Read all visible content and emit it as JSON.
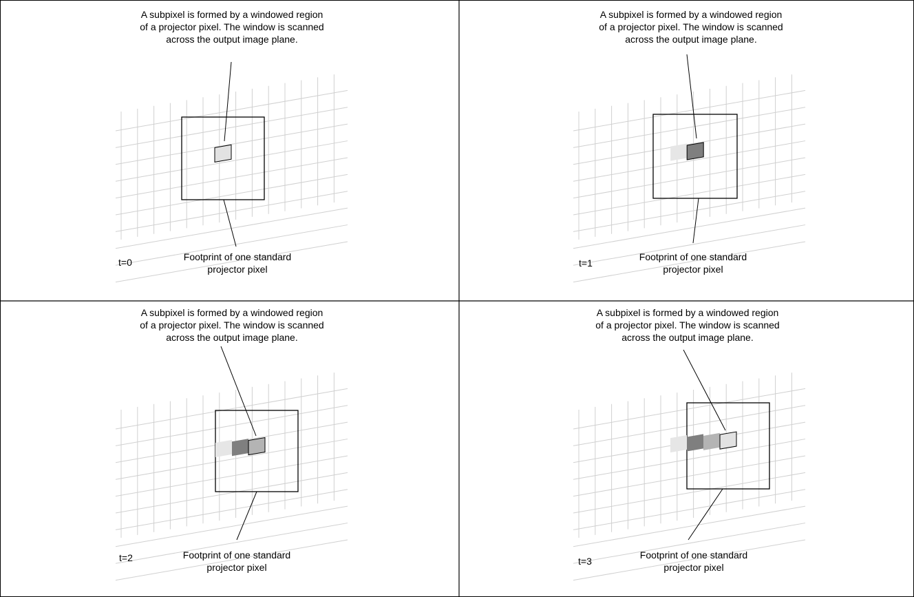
{
  "panels": [
    {
      "time_label": "t=0",
      "top_caption": [
        "A subpixel is formed by a windowed region",
        "of a projector pixel. The window is scanned",
        "across the output image plane."
      ],
      "bottom_caption": [
        "Footprint of one standard",
        "projector pixel"
      ],
      "trail_levels": [
        "light"
      ]
    },
    {
      "time_label": "t=1",
      "top_caption": [
        "A subpixel is formed by a windowed region",
        "of a projector pixel. The window is scanned",
        "across the output image plane."
      ],
      "bottom_caption": [
        "Footprint of one standard",
        "projector pixel"
      ],
      "trail_levels": [
        "faint",
        "dark"
      ]
    },
    {
      "time_label": "t=2",
      "top_caption": [
        "A subpixel is formed by a windowed region",
        "of a projector pixel. The window is scanned",
        "across the output image plane."
      ],
      "bottom_caption": [
        "Footprint of one standard",
        "projector pixel"
      ],
      "trail_levels": [
        "faint",
        "dark",
        "medium"
      ]
    },
    {
      "time_label": "t=3",
      "top_caption": [
        "A subpixel is formed by a windowed region",
        "of a projector pixel. The window is scanned",
        "across the output image plane."
      ],
      "bottom_caption": [
        "Footprint of one standard",
        "projector pixel"
      ],
      "trail_levels": [
        "faint",
        "dark",
        "medium",
        "light"
      ]
    }
  ],
  "colors": {
    "grid": "#d0d0d0",
    "outline": "#000000",
    "faint": "#e6e6e6",
    "dark": "#7f7f7f",
    "medium": "#b4b4b4",
    "light": "#e2e2e2"
  }
}
